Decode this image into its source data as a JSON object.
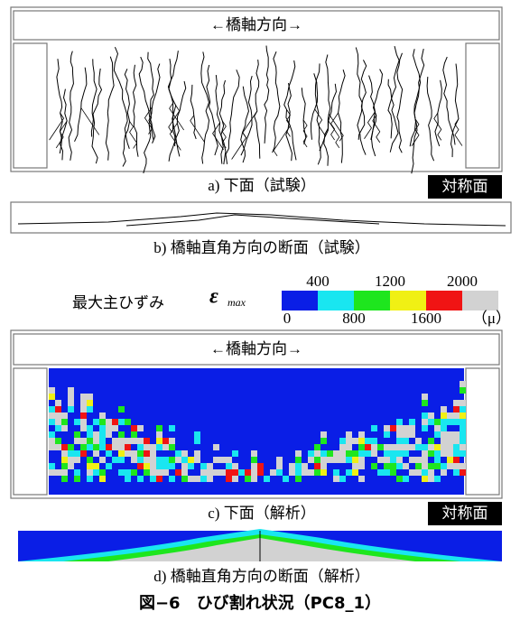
{
  "panel_a": {
    "header": "←橋軸方向→",
    "caption": "a) 下面（試験）",
    "symmetry_label": "対称面"
  },
  "panel_b": {
    "caption": "b) 橋軸直角方向の断面（試験）"
  },
  "legend": {
    "label": "最大主ひずみ",
    "symbol": "ε",
    "symbol_sub": "max",
    "ticks": [
      0,
      400,
      800,
      1200,
      1600,
      2000
    ],
    "unit": "（μ）",
    "colors": [
      "#0a1ee6",
      "#19e6f0",
      "#1ee61e",
      "#f0f014",
      "#f01414",
      "#d2d2d2"
    ]
  },
  "panel_c": {
    "header": "←橋軸方向→",
    "caption": "c) 下面（解析）",
    "symmetry_label": "対称面"
  },
  "panel_d": {
    "caption": "d) 橋軸直角方向の断面（解析）"
  },
  "figure_caption": "図−6　ひび割れ状況（PC8_1）"
}
